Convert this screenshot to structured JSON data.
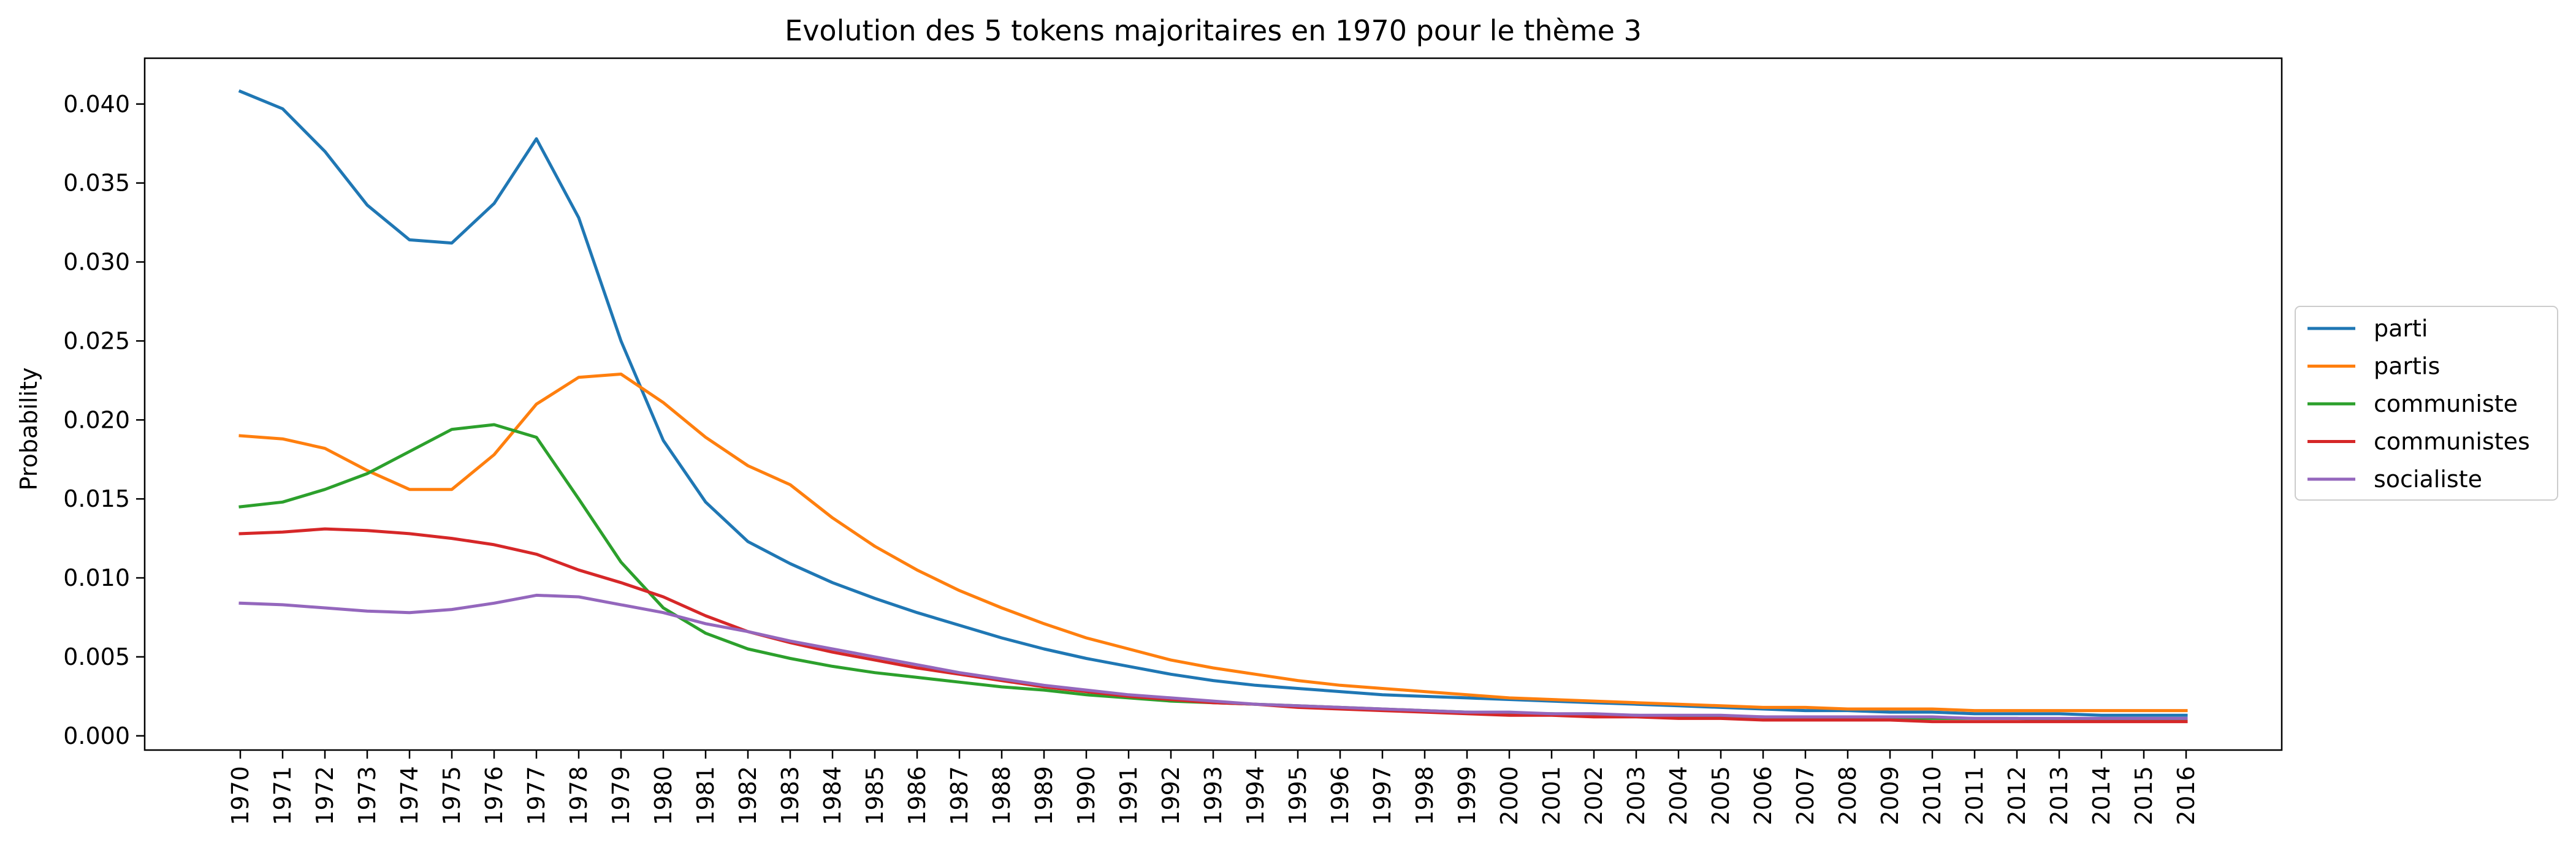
{
  "chart_data": {
    "type": "line",
    "title": "Evolution des 5 tokens majoritaires en 1970 pour le thème 3",
    "xlabel": "",
    "ylabel": "Probability",
    "ylim": [
      -0.0009,
      0.0429
    ],
    "y_ticks": [
      0.0,
      0.005,
      0.01,
      0.015,
      0.02,
      0.025,
      0.03,
      0.035,
      0.04
    ],
    "y_tick_labels": [
      "0.000",
      "0.005",
      "0.010",
      "0.015",
      "0.020",
      "0.025",
      "0.030",
      "0.035",
      "0.040"
    ],
    "grid": false,
    "legend_position": "outside right, center",
    "x": [
      "1970",
      "1971",
      "1972",
      "1973",
      "1974",
      "1975",
      "1976",
      "1977",
      "1978",
      "1979",
      "1980",
      "1981",
      "1982",
      "1983",
      "1984",
      "1985",
      "1986",
      "1987",
      "1988",
      "1989",
      "1990",
      "1991",
      "1992",
      "1993",
      "1994",
      "1995",
      "1996",
      "1997",
      "1998",
      "1999",
      "2000",
      "2001",
      "2002",
      "2003",
      "2004",
      "2005",
      "2006",
      "2007",
      "2008",
      "2009",
      "2010",
      "2011",
      "2012",
      "2013",
      "2014",
      "2015",
      "2016"
    ],
    "series": [
      {
        "name": "parti",
        "color": "#1f77b4",
        "values": [
          0.0408,
          0.0397,
          0.037,
          0.0336,
          0.0314,
          0.0312,
          0.0337,
          0.0378,
          0.0328,
          0.025,
          0.0187,
          0.0148,
          0.0123,
          0.0109,
          0.0097,
          0.0087,
          0.0078,
          0.007,
          0.0062,
          0.0055,
          0.0049,
          0.0044,
          0.0039,
          0.0035,
          0.0032,
          0.003,
          0.0028,
          0.0026,
          0.0025,
          0.0024,
          0.0023,
          0.0022,
          0.0021,
          0.002,
          0.0019,
          0.0018,
          0.0017,
          0.0016,
          0.0016,
          0.0015,
          0.0015,
          0.0014,
          0.0014,
          0.0014,
          0.0013,
          0.0013,
          0.0013
        ]
      },
      {
        "name": "partis",
        "color": "#ff7f0e",
        "values": [
          0.019,
          0.0188,
          0.0182,
          0.0168,
          0.0156,
          0.0156,
          0.0178,
          0.021,
          0.0227,
          0.0229,
          0.0211,
          0.0189,
          0.0171,
          0.0159,
          0.0138,
          0.012,
          0.0105,
          0.0092,
          0.0081,
          0.0071,
          0.0062,
          0.0055,
          0.0048,
          0.0043,
          0.0039,
          0.0035,
          0.0032,
          0.003,
          0.0028,
          0.0026,
          0.0024,
          0.0023,
          0.0022,
          0.0021,
          0.002,
          0.0019,
          0.0018,
          0.0018,
          0.0017,
          0.0017,
          0.0017,
          0.0016,
          0.0016,
          0.0016,
          0.0016,
          0.0016,
          0.0016
        ]
      },
      {
        "name": "communiste",
        "color": "#2ca02c",
        "values": [
          0.0145,
          0.0148,
          0.0156,
          0.0166,
          0.018,
          0.0194,
          0.0197,
          0.0189,
          0.015,
          0.011,
          0.0081,
          0.0065,
          0.0055,
          0.0049,
          0.0044,
          0.004,
          0.0037,
          0.0034,
          0.0031,
          0.0029,
          0.0026,
          0.0024,
          0.0022,
          0.0021,
          0.002,
          0.0019,
          0.0018,
          0.0017,
          0.0016,
          0.0015,
          0.0014,
          0.0014,
          0.0013,
          0.0013,
          0.0012,
          0.0012,
          0.0012,
          0.0011,
          0.0011,
          0.0011,
          0.0011,
          0.0011,
          0.0011,
          0.001,
          0.001,
          0.001,
          0.001
        ]
      },
      {
        "name": "communistes",
        "color": "#d62728",
        "values": [
          0.0128,
          0.0129,
          0.0131,
          0.013,
          0.0128,
          0.0125,
          0.0121,
          0.0115,
          0.0105,
          0.0097,
          0.0088,
          0.0076,
          0.0066,
          0.0059,
          0.0053,
          0.0048,
          0.0043,
          0.0039,
          0.0035,
          0.0031,
          0.0028,
          0.0025,
          0.0023,
          0.0021,
          0.002,
          0.0018,
          0.0017,
          0.0016,
          0.0015,
          0.0014,
          0.0013,
          0.0013,
          0.0012,
          0.0012,
          0.0011,
          0.0011,
          0.001,
          0.001,
          0.001,
          0.001,
          0.0009,
          0.0009,
          0.0009,
          0.0009,
          0.0009,
          0.0009,
          0.0009
        ]
      },
      {
        "name": "socialiste",
        "color": "#9467bd",
        "values": [
          0.0084,
          0.0083,
          0.0081,
          0.0079,
          0.0078,
          0.008,
          0.0084,
          0.0089,
          0.0088,
          0.0083,
          0.0078,
          0.0071,
          0.0066,
          0.006,
          0.0055,
          0.005,
          0.0045,
          0.004,
          0.0036,
          0.0032,
          0.0029,
          0.0026,
          0.0024,
          0.0022,
          0.002,
          0.0019,
          0.0018,
          0.0017,
          0.0016,
          0.0015,
          0.0015,
          0.0014,
          0.0014,
          0.0013,
          0.0013,
          0.0013,
          0.0012,
          0.0012,
          0.0012,
          0.0012,
          0.0012,
          0.0011,
          0.0011,
          0.0011,
          0.0011,
          0.0011,
          0.0011
        ]
      }
    ]
  }
}
